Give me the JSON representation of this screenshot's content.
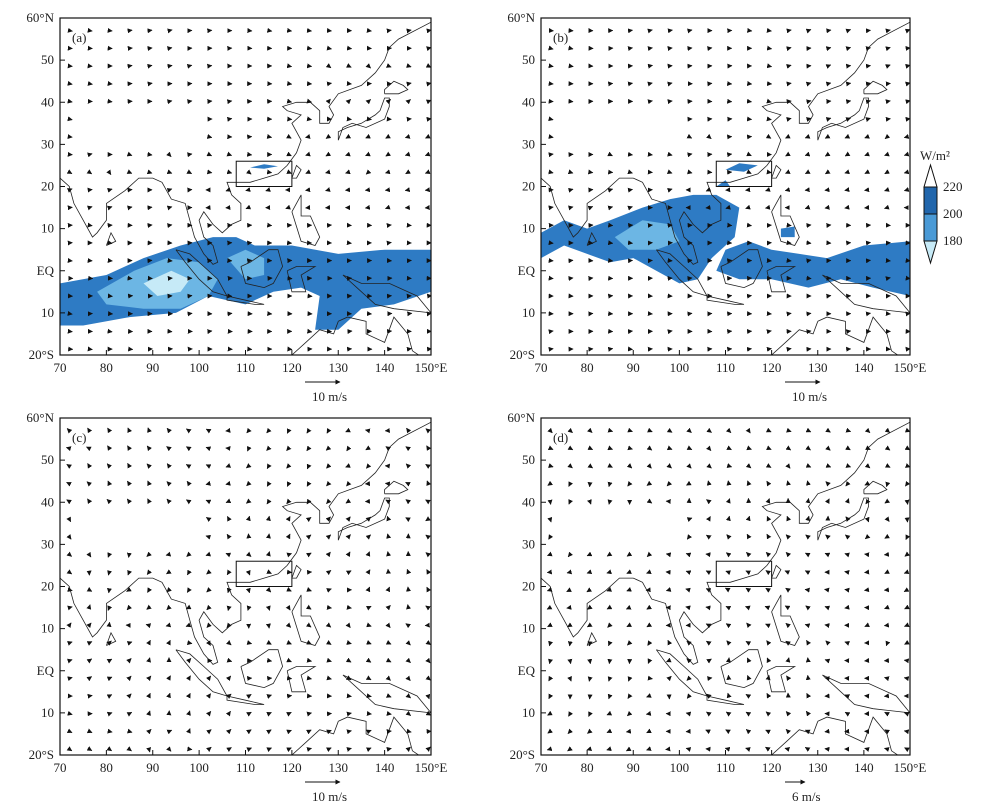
{
  "panels": [
    {
      "label": "(a)",
      "ref_label": "10 m/s",
      "ref_speed": 10,
      "olr_shading": true,
      "seed": 11
    },
    {
      "label": "(b)",
      "ref_label": "10 m/s",
      "ref_speed": 10,
      "olr_shading": true,
      "seed": 23
    },
    {
      "label": "(c)",
      "ref_label": "10 m/s",
      "ref_speed": 10,
      "olr_shading": false,
      "seed": 37
    },
    {
      "label": "(d)",
      "ref_label": "6 m/s",
      "ref_speed": 6,
      "olr_shading": false,
      "seed": 51
    }
  ],
  "axes": {
    "x_ticks": [
      "70",
      "80",
      "90",
      "100",
      "110",
      "120",
      "130",
      "140",
      "150°E"
    ],
    "y_ticks": [
      "60°N",
      "50",
      "40",
      "30",
      "20",
      "10",
      "EQ",
      "10",
      "20°S"
    ],
    "lon_range": [
      70,
      150
    ],
    "lat_range": [
      -20,
      60
    ]
  },
  "box_region": {
    "lon": [
      108,
      120
    ],
    "lat": [
      20,
      26
    ]
  },
  "colorbar": {
    "unit": "W/m²",
    "levels": [
      "220",
      "200",
      "180"
    ],
    "colors": [
      "#2166ac",
      "#2e7bc4",
      "#6cb6e4",
      "#c6eaf7"
    ]
  }
}
